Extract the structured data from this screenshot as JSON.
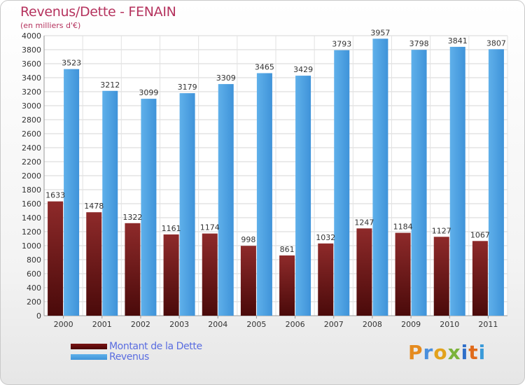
{
  "chart_data": {
    "type": "bar",
    "title": "Revenus/Dette - FENAIN",
    "subtitle": "(en milliers d'€)",
    "categories": [
      "2000",
      "2001",
      "2002",
      "2003",
      "2004",
      "2005",
      "2006",
      "2007",
      "2008",
      "2009",
      "2010",
      "2011"
    ],
    "series": [
      {
        "name": "Montant de la Dette",
        "values": [
          1633,
          1478,
          1322,
          1161,
          1174,
          998,
          861,
          1032,
          1247,
          1184,
          1127,
          1067
        ],
        "color": "#8b1a1a"
      },
      {
        "name": "Revenus",
        "values": [
          3523,
          3212,
          3099,
          3179,
          3309,
          3465,
          3429,
          3793,
          3957,
          3798,
          3841,
          3807
        ],
        "color": "#4a9be0"
      }
    ],
    "ylim": [
      0,
      4000
    ],
    "yticks": [
      0,
      200,
      400,
      600,
      800,
      1000,
      1200,
      1400,
      1600,
      1800,
      2000,
      2200,
      2400,
      2600,
      2800,
      3000,
      3200,
      3400,
      3600,
      3800,
      4000
    ],
    "grid": true,
    "legend": "bottom-left"
  },
  "logo": {
    "letters": [
      "P",
      "r",
      "o",
      "x",
      "i",
      "t",
      "i"
    ],
    "colors": [
      "#e58b1f",
      "#4a8fdc",
      "#e2a21c",
      "#7bb33a",
      "#2f6fc9",
      "#e06a1a",
      "#3a9ad9"
    ]
  }
}
